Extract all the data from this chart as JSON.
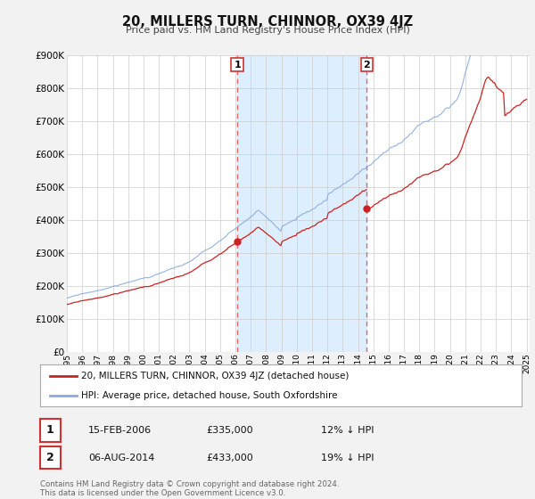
{
  "title": "20, MILLERS TURN, CHINNOR, OX39 4JZ",
  "subtitle": "Price paid vs. HM Land Registry's House Price Index (HPI)",
  "background_color": "#f2f2f2",
  "plot_background_color": "#ffffff",
  "hpi_color": "#88aadd",
  "price_color": "#cc2222",
  "shade_color": "#ddeeff",
  "ylim": [
    0,
    900000
  ],
  "xlim_start": 1995.0,
  "xlim_end": 2025.2,
  "yticks": [
    0,
    100000,
    200000,
    300000,
    400000,
    500000,
    600000,
    700000,
    800000,
    900000
  ],
  "ytick_labels": [
    "£0",
    "£100K",
    "£200K",
    "£300K",
    "£400K",
    "£500K",
    "£600K",
    "£700K",
    "£800K",
    "£900K"
  ],
  "xticks": [
    1995,
    1996,
    1997,
    1998,
    1999,
    2000,
    2001,
    2002,
    2003,
    2004,
    2005,
    2006,
    2007,
    2008,
    2009,
    2010,
    2011,
    2012,
    2013,
    2014,
    2015,
    2016,
    2017,
    2018,
    2019,
    2020,
    2021,
    2022,
    2023,
    2024,
    2025
  ],
  "transaction1_date": 2006.12,
  "transaction1_price": 335000,
  "transaction2_date": 2014.58,
  "transaction2_price": 433000,
  "transaction1_display": "15-FEB-2006",
  "transaction1_pct": "12% ↓ HPI",
  "transaction2_display": "06-AUG-2014",
  "transaction2_pct": "19% ↓ HPI",
  "legend_line1": "20, MILLERS TURN, CHINNOR, OX39 4JZ (detached house)",
  "legend_line2": "HPI: Average price, detached house, South Oxfordshire",
  "footer1": "Contains HM Land Registry data © Crown copyright and database right 2024.",
  "footer2": "This data is licensed under the Open Government Licence v3.0."
}
